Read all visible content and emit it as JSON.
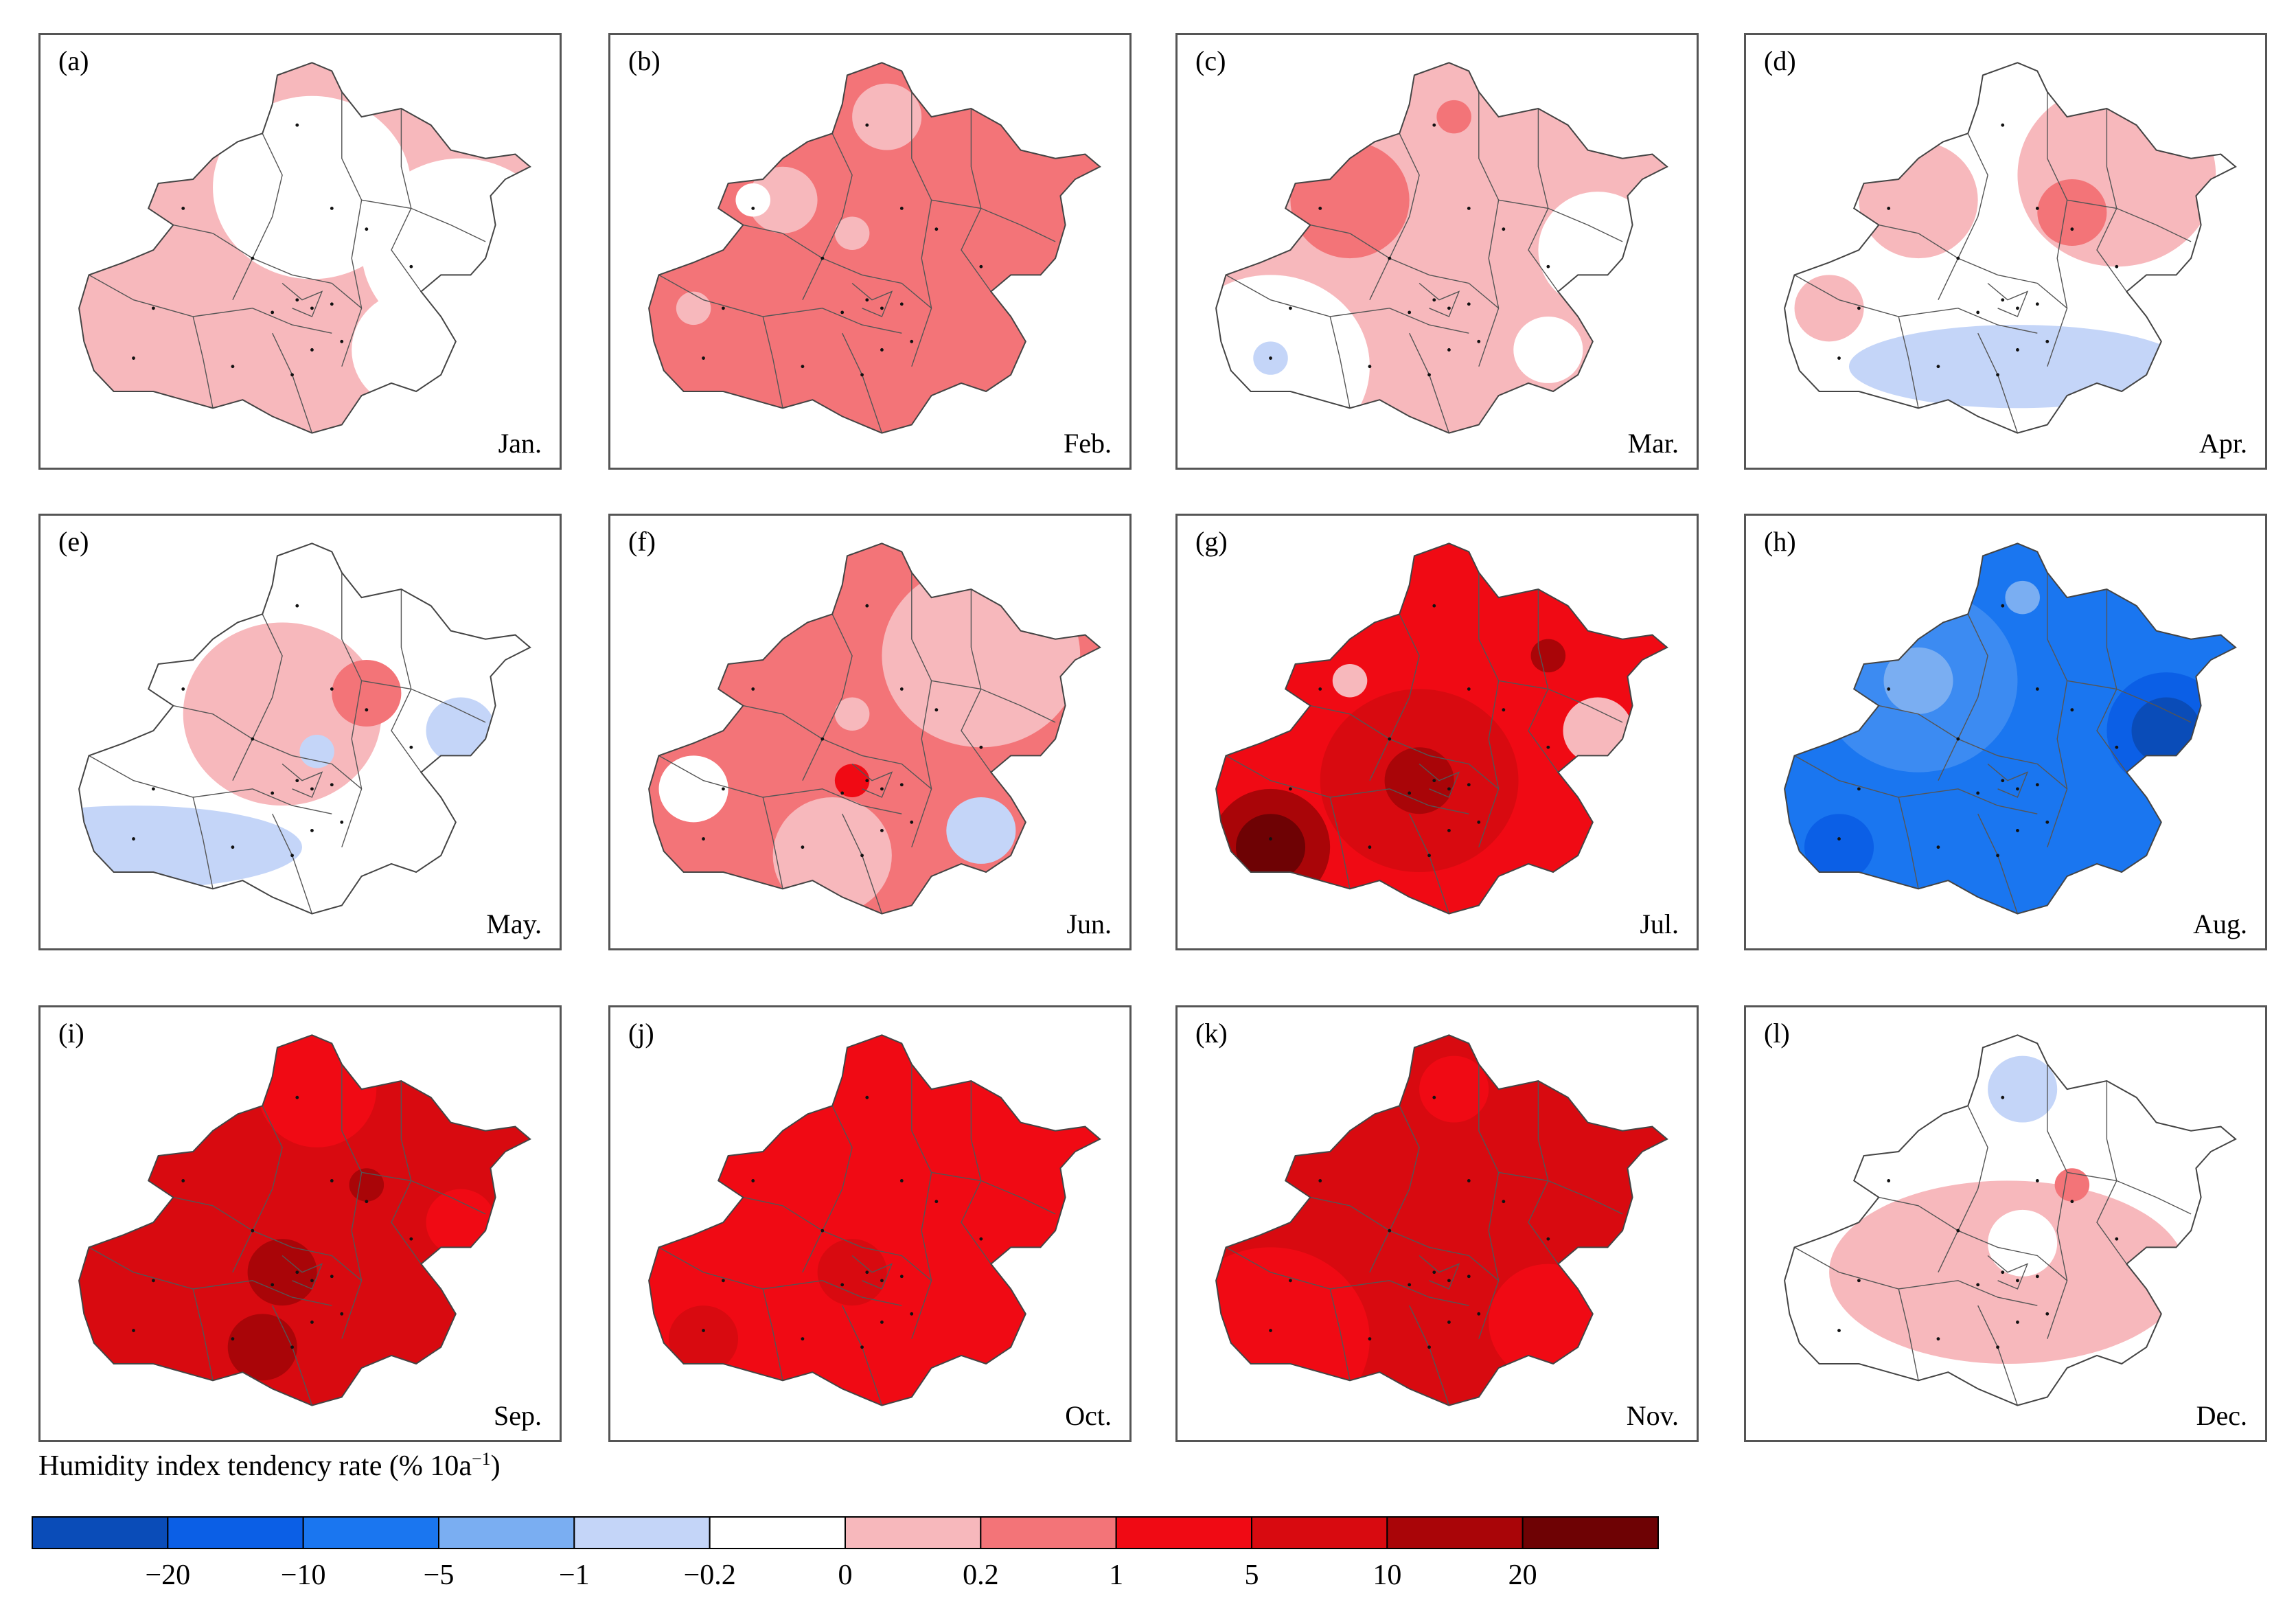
{
  "figure": {
    "panels": [
      {
        "label": "(a)",
        "month": "Jan.",
        "base": "light_pink",
        "blobs": [
          {
            "c": "white",
            "at": "north-center",
            "w": "wide"
          },
          {
            "c": "white",
            "at": "east",
            "w": "wide"
          },
          {
            "c": "white",
            "at": "south-east",
            "w": "medium"
          }
        ]
      },
      {
        "label": "(b)",
        "month": "Feb.",
        "base": "pink",
        "blobs": [
          {
            "c": "light_pink",
            "at": "north",
            "w": "small"
          },
          {
            "c": "light_pink",
            "at": "north-west",
            "w": "small"
          },
          {
            "c": "white",
            "at": "north-west-dot",
            "w": "tiny"
          },
          {
            "c": "light_pink",
            "at": "center-north",
            "w": "tiny"
          },
          {
            "c": "light_pink",
            "at": "west",
            "w": "tiny"
          }
        ]
      },
      {
        "label": "(c)",
        "month": "Mar.",
        "base": "light_pink",
        "blobs": [
          {
            "c": "pink",
            "at": "north-west",
            "w": "medium"
          },
          {
            "c": "pink",
            "at": "north",
            "w": "tiny"
          },
          {
            "c": "white",
            "at": "south-west",
            "w": "wide"
          },
          {
            "c": "white",
            "at": "east",
            "w": "medium"
          },
          {
            "c": "white",
            "at": "south-east",
            "w": "small"
          },
          {
            "c": "pale_blue",
            "at": "south-west-dot",
            "w": "tiny"
          }
        ]
      },
      {
        "label": "(d)",
        "month": "Apr.",
        "base": "white",
        "blobs": [
          {
            "c": "light_pink",
            "at": "north-west",
            "w": "medium"
          },
          {
            "c": "light_pink",
            "at": "north-east",
            "w": "wide"
          },
          {
            "c": "pink",
            "at": "north-east-dot",
            "w": "small"
          },
          {
            "c": "light_pink",
            "at": "west",
            "w": "small"
          },
          {
            "c": "pale_blue",
            "at": "south",
            "w": "band"
          }
        ]
      },
      {
        "label": "(e)",
        "month": "May.",
        "base": "white",
        "blobs": [
          {
            "c": "light_pink",
            "at": "center-north",
            "w": "wide"
          },
          {
            "c": "pink",
            "at": "north-east-dot",
            "w": "small"
          },
          {
            "c": "pale_blue",
            "at": "east",
            "w": "small"
          },
          {
            "c": "pale_blue",
            "at": "south-west",
            "w": "band"
          },
          {
            "c": "pale_blue",
            "at": "center-dot",
            "w": "tiny"
          }
        ]
      },
      {
        "label": "(f)",
        "month": "Jun.",
        "base": "pink",
        "blobs": [
          {
            "c": "light_pink",
            "at": "north-east",
            "w": "wide"
          },
          {
            "c": "light_pink",
            "at": "south-center",
            "w": "medium"
          },
          {
            "c": "white",
            "at": "west",
            "w": "small"
          },
          {
            "c": "pale_blue",
            "at": "south-east",
            "w": "small"
          },
          {
            "c": "red",
            "at": "center",
            "w": "tiny"
          },
          {
            "c": "light_pink",
            "at": "center-north",
            "w": "tiny"
          }
        ]
      },
      {
        "label": "(g)",
        "month": "Jul.",
        "base": "red",
        "blobs": [
          {
            "c": "crimson",
            "at": "center",
            "w": "wide"
          },
          {
            "c": "darkred",
            "at": "center",
            "w": "small"
          },
          {
            "c": "darkred",
            "at": "south-west",
            "w": "medium"
          },
          {
            "c": "maroon",
            "at": "south-west",
            "w": "small"
          },
          {
            "c": "darkred",
            "at": "north-east",
            "w": "tiny"
          },
          {
            "c": "light_pink",
            "at": "north-west",
            "w": "tiny"
          },
          {
            "c": "light_pink",
            "at": "east",
            "w": "small"
          }
        ]
      },
      {
        "label": "(h)",
        "month": "Aug.",
        "base": "blue",
        "blobs": [
          {
            "c": "mid_blue",
            "at": "north-west",
            "w": "wide"
          },
          {
            "c": "light_blue",
            "at": "north-west",
            "w": "small"
          },
          {
            "c": "light_blue",
            "at": "north",
            "w": "tiny"
          },
          {
            "c": "darker_blue",
            "at": "east",
            "w": "medium"
          },
          {
            "c": "navy",
            "at": "east",
            "w": "small"
          },
          {
            "c": "darker_blue",
            "at": "south-west",
            "w": "small"
          }
        ]
      },
      {
        "label": "(i)",
        "month": "Sep.",
        "base": "crimson",
        "blobs": [
          {
            "c": "red",
            "at": "north",
            "w": "medium"
          },
          {
            "c": "darkred",
            "at": "north-east-dot",
            "w": "tiny"
          },
          {
            "c": "darkred",
            "at": "center",
            "w": "small"
          },
          {
            "c": "darkred",
            "at": "south-center",
            "w": "small"
          },
          {
            "c": "red",
            "at": "east",
            "w": "small"
          }
        ]
      },
      {
        "label": "(j)",
        "month": "Oct.",
        "base": "red",
        "blobs": [
          {
            "c": "crimson",
            "at": "center",
            "w": "small"
          },
          {
            "c": "crimson",
            "at": "south-west",
            "w": "small"
          }
        ]
      },
      {
        "label": "(k)",
        "month": "Nov.",
        "base": "crimson",
        "blobs": [
          {
            "c": "red",
            "at": "north",
            "w": "small"
          },
          {
            "c": "red",
            "at": "south-west",
            "w": "wide"
          },
          {
            "c": "red",
            "at": "south-east",
            "w": "medium"
          }
        ]
      },
      {
        "label": "(l)",
        "month": "Dec.",
        "base": "white",
        "blobs": [
          {
            "c": "light_pink",
            "at": "center-south",
            "w": "band-wide"
          },
          {
            "c": "pale_blue",
            "at": "north",
            "w": "small"
          },
          {
            "c": "pink",
            "at": "north-east-dot",
            "w": "tiny"
          },
          {
            "c": "white",
            "at": "center-dot",
            "w": "small"
          }
        ]
      }
    ]
  },
  "chart_data": {
    "type": "heatmap",
    "title": "",
    "description_label": "Humidity index tendency rate",
    "units_prefix": "(% 10a",
    "units_sup": "−1",
    "units_suffix": ")",
    "colorbar": {
      "bins": [
        {
          "color": "#0A4CB8"
        },
        {
          "color": "#0B5FE6"
        },
        {
          "color": "#1A76F0"
        },
        {
          "color": "#7AAEF2"
        },
        {
          "color": "#C4D5F8"
        },
        {
          "color": "#FFFFFF"
        },
        {
          "color": "#F7B8BC"
        },
        {
          "color": "#F37478"
        },
        {
          "color": "#F00A14"
        },
        {
          "color": "#D80A10"
        },
        {
          "color": "#A90508"
        },
        {
          "color": "#6E0204"
        }
      ],
      "ticks": [
        {
          "label": "−20",
          "value": -20
        },
        {
          "label": "−10",
          "value": -10
        },
        {
          "label": "−5",
          "value": -5
        },
        {
          "label": "−1",
          "value": -1
        },
        {
          "label": "−0.2",
          "value": -0.2
        },
        {
          "label": "0",
          "value": 0
        },
        {
          "label": "0.2",
          "value": 0.2
        },
        {
          "label": "1",
          "value": 1
        },
        {
          "label": "5",
          "value": 5
        },
        {
          "label": "10",
          "value": 10
        },
        {
          "label": "20",
          "value": 20
        }
      ]
    }
  },
  "palette": {
    "navy": "#0A4CB8",
    "darker_blue": "#0B5FE6",
    "blue": "#1A76F0",
    "mid_blue": "#3C8BF2",
    "light_blue": "#7AAEF2",
    "pale_blue": "#C4D5F8",
    "white": "#FFFFFF",
    "light_pink": "#F7B8BC",
    "pink": "#F37478",
    "red": "#F00A14",
    "crimson": "#D80A10",
    "darkred": "#A90508",
    "maroon": "#6E0204",
    "border": "#444444"
  }
}
